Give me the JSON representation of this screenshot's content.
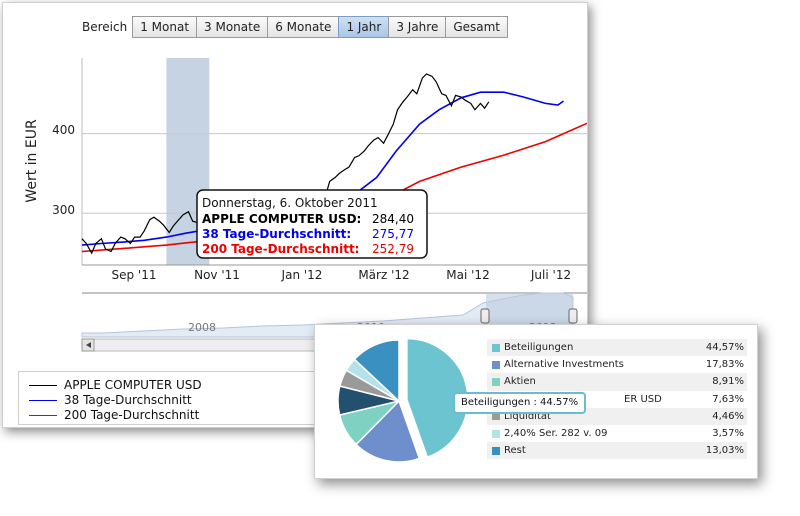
{
  "range_selector": {
    "label": "Bereich",
    "buttons": [
      "1 Monat",
      "3 Monate",
      "6 Monate",
      "1 Jahr",
      "3 Jahre",
      "Gesamt"
    ],
    "active": "1 Jahr"
  },
  "tooltip": {
    "date": "Donnerstag, 6. Oktober 2011",
    "rows": [
      {
        "name": "APPLE COMPUTER USD:",
        "value": "284,40",
        "color": "#000000"
      },
      {
        "name": "38 Tage-Durchschnitt:",
        "value": "275,77",
        "color": "#0000ee"
      },
      {
        "name": "200 Tage-Durchschnitt:",
        "value": "252,79",
        "color": "#ee0000"
      }
    ]
  },
  "navigator": {
    "year_labels": [
      "2008",
      "2010",
      "2012"
    ]
  },
  "legend": [
    {
      "name": "APPLE COMPUTER USD",
      "color": "#000000"
    },
    {
      "name": "38 Tage-Durchschnitt",
      "color": "#0000ee"
    },
    {
      "name": "200 Tage-Durchschnitt",
      "color": "#ee0000"
    }
  ],
  "pie_tooltip": "Beteiligungen : 44.57%",
  "chart_data": [
    {
      "type": "line",
      "ylabel": "Wert in EUR",
      "x_ticks": [
        "Sep '11",
        "Nov '11",
        "Jan '12",
        "März '12",
        "Mai '12",
        "Juli '12"
      ],
      "y_ticks": [
        300,
        400
      ],
      "ylim": [
        235,
        495
      ],
      "x_range": [
        "2011-08-01",
        "2012-07-31"
      ],
      "highlight_band": [
        "2011-10-01",
        "2011-11-01"
      ],
      "series": [
        {
          "name": "APPLE COMPUTER USD",
          "color": "#000000",
          "points": [
            [
              "2011-08-01",
              268
            ],
            [
              "2011-08-04",
              262
            ],
            [
              "2011-08-08",
              250
            ],
            [
              "2011-08-11",
              262
            ],
            [
              "2011-08-15",
              268
            ],
            [
              "2011-08-18",
              255
            ],
            [
              "2011-08-22",
              252
            ],
            [
              "2011-08-25",
              262
            ],
            [
              "2011-08-29",
              270
            ],
            [
              "2011-09-01",
              268
            ],
            [
              "2011-09-05",
              262
            ],
            [
              "2011-09-08",
              270
            ],
            [
              "2011-09-12",
              270
            ],
            [
              "2011-09-15",
              278
            ],
            [
              "2011-09-19",
              292
            ],
            [
              "2011-09-22",
              295
            ],
            [
              "2011-09-26",
              290
            ],
            [
              "2011-09-29",
              285
            ],
            [
              "2011-10-03",
              276
            ],
            [
              "2011-10-06",
              284
            ],
            [
              "2011-10-10",
              292
            ],
            [
              "2011-10-13",
              298
            ],
            [
              "2011-10-17",
              302
            ],
            [
              "2011-10-20",
              290
            ],
            [
              "2011-10-24",
              288
            ],
            [
              "2011-10-27",
              295
            ],
            [
              "2011-10-31",
              290
            ],
            [
              "2011-11-03",
              286
            ],
            [
              "2011-11-07",
              292
            ],
            [
              "2011-11-10",
              285
            ],
            [
              "2011-11-14",
              288
            ],
            [
              "2011-11-17",
              280
            ],
            [
              "2011-11-21",
              270
            ],
            [
              "2011-11-24",
              275
            ],
            [
              "2011-11-28",
              278
            ],
            [
              "2011-12-01",
              284
            ],
            [
              "2011-12-05",
              288
            ],
            [
              "2011-12-08",
              292
            ],
            [
              "2011-12-12",
              290
            ],
            [
              "2011-12-15",
              285
            ],
            [
              "2011-12-19",
              288
            ],
            [
              "2011-12-22",
              295
            ],
            [
              "2011-12-27",
              300
            ],
            [
              "2011-12-30",
              298
            ],
            [
              "2012-01-03",
              300
            ],
            [
              "2012-01-06",
              304
            ],
            [
              "2012-01-10",
              307
            ],
            [
              "2012-01-13",
              308
            ],
            [
              "2012-01-17",
              315
            ],
            [
              "2012-01-20",
              318
            ],
            [
              "2012-01-24",
              322
            ],
            [
              "2012-01-27",
              340
            ],
            [
              "2012-01-31",
              345
            ],
            [
              "2012-02-03",
              350
            ],
            [
              "2012-02-07",
              355
            ],
            [
              "2012-02-10",
              358
            ],
            [
              "2012-02-14",
              370
            ],
            [
              "2012-02-17",
              372
            ],
            [
              "2012-02-21",
              378
            ],
            [
              "2012-02-24",
              385
            ],
            [
              "2012-02-28",
              392
            ],
            [
              "2012-03-02",
              395
            ],
            [
              "2012-03-06",
              388
            ],
            [
              "2012-03-09",
              398
            ],
            [
              "2012-03-13",
              412
            ],
            [
              "2012-03-16",
              430
            ],
            [
              "2012-03-20",
              440
            ],
            [
              "2012-03-23",
              446
            ],
            [
              "2012-03-27",
              455
            ],
            [
              "2012-03-30",
              450
            ],
            [
              "2012-04-03",
              470
            ],
            [
              "2012-04-06",
              475
            ],
            [
              "2012-04-10",
              472
            ],
            [
              "2012-04-13",
              465
            ],
            [
              "2012-04-17",
              450
            ],
            [
              "2012-04-20",
              448
            ],
            [
              "2012-04-24",
              435
            ],
            [
              "2012-04-27",
              448
            ],
            [
              "2012-05-01",
              446
            ],
            [
              "2012-05-04",
              442
            ],
            [
              "2012-05-08",
              438
            ],
            [
              "2012-05-11",
              430
            ],
            [
              "2012-05-15",
              438
            ],
            [
              "2012-05-18",
              432
            ],
            [
              "2012-05-21",
              440
            ]
          ]
        },
        {
          "name": "38 Tage-Durchschnitt",
          "color": "#0000ee",
          "points": [
            [
              "2011-08-01",
              260
            ],
            [
              "2011-08-15",
              262
            ],
            [
              "2011-09-01",
              264
            ],
            [
              "2011-09-15",
              266
            ],
            [
              "2011-10-01",
              270
            ],
            [
              "2011-10-15",
              275
            ],
            [
              "2011-11-01",
              280
            ],
            [
              "2011-11-15",
              283
            ],
            [
              "2011-12-01",
              285
            ],
            [
              "2011-12-15",
              286
            ],
            [
              "2012-01-01",
              288
            ],
            [
              "2012-01-15",
              296
            ],
            [
              "2012-02-01",
              308
            ],
            [
              "2012-02-15",
              325
            ],
            [
              "2012-03-01",
              345
            ],
            [
              "2012-03-15",
              378
            ],
            [
              "2012-04-01",
              412
            ],
            [
              "2012-04-15",
              430
            ],
            [
              "2012-05-01",
              445
            ],
            [
              "2012-05-15",
              452
            ],
            [
              "2012-06-01",
              452
            ],
            [
              "2012-06-15",
              446
            ],
            [
              "2012-07-01",
              438
            ],
            [
              "2012-07-10",
              436
            ],
            [
              "2012-07-14",
              441
            ]
          ]
        },
        {
          "name": "200 Tage-Durchschnitt",
          "color": "#ee0000",
          "points": [
            [
              "2011-08-01",
              252
            ],
            [
              "2011-09-01",
              256
            ],
            [
              "2011-10-01",
              260
            ],
            [
              "2011-11-01",
              266
            ],
            [
              "2011-12-01",
              272
            ],
            [
              "2012-01-01",
              280
            ],
            [
              "2012-02-01",
              295
            ],
            [
              "2012-03-01",
              312
            ],
            [
              "2012-04-01",
              340
            ],
            [
              "2012-05-01",
              358
            ],
            [
              "2012-06-01",
              373
            ],
            [
              "2012-07-01",
              390
            ],
            [
              "2012-07-31",
              413
            ]
          ]
        }
      ]
    },
    {
      "type": "pie",
      "slices": [
        {
          "name": "Beteiligungen",
          "value": 44.57,
          "label": "44,57%",
          "color": "#6cc4d0"
        },
        {
          "name": "Alternative Investments",
          "value": 17.83,
          "label": "17,83%",
          "color": "#6e8fcb"
        },
        {
          "name": "Aktien",
          "value": 8.91,
          "label": "8,91%",
          "color": "#7fd1c2"
        },
        {
          "name": "ER USD",
          "value": 7.63,
          "label": "7,63%",
          "color": "#23506e"
        },
        {
          "name": "Liquidität",
          "value": 4.46,
          "label": "4,46%",
          "color": "#9a9a9a"
        },
        {
          "name": "2,40% Ser. 282 v. 09",
          "value": 3.57,
          "label": "3,57%",
          "color": "#b3e2ea"
        },
        {
          "name": "Rest",
          "value": 13.03,
          "label": "13,03%",
          "color": "#3a90c0"
        }
      ]
    }
  ]
}
